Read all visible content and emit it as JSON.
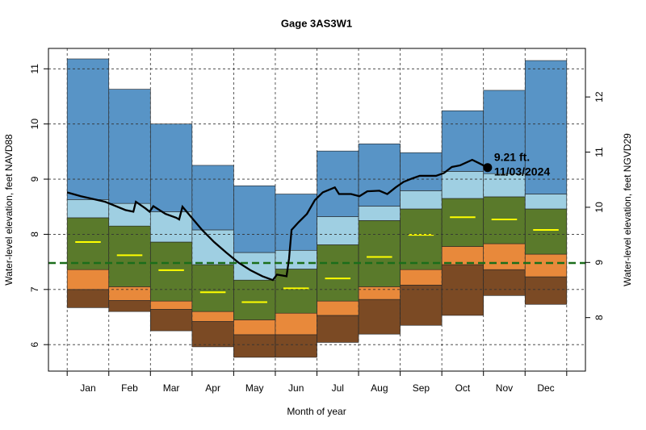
{
  "chart_data": {
    "type": "percentile-bands",
    "title": "Gage 3AS3W1",
    "x_label": "Month of year",
    "y_label": "Water-level elevation, feet NAVD88",
    "y2_label": "Water-level elevation, feet NGVD29",
    "categories": [
      "Jan",
      "Feb",
      "Mar",
      "Apr",
      "May",
      "Jun",
      "Jul",
      "Aug",
      "Sep",
      "Oct",
      "Nov",
      "Dec"
    ],
    "xlim": [
      -0.45,
      12.45
    ],
    "ylim": [
      5.52,
      11.37
    ],
    "yticks": [
      6,
      7,
      8,
      9,
      10,
      11
    ],
    "y2lim": [
      7.03,
      12.88
    ],
    "y2ticks": [
      8,
      9,
      10,
      11,
      12
    ],
    "grid": true,
    "floor": [
      6.67,
      6.6,
      6.25,
      5.96,
      5.77,
      5.77,
      6.04,
      6.19,
      6.35,
      6.53,
      6.89,
      6.73
    ],
    "series": [
      {
        "color": "#7b4a24",
        "values": [
          7.0,
          6.8,
          6.64,
          6.42,
          6.18,
          6.18,
          6.53,
          6.82,
          7.08,
          7.45,
          7.36,
          7.23
        ]
      },
      {
        "color": "#e8893b",
        "values": [
          7.36,
          7.05,
          6.79,
          6.6,
          6.45,
          6.57,
          6.79,
          7.05,
          7.36,
          7.78,
          7.83,
          7.64
        ]
      },
      {
        "color": "#5a7a2b",
        "values": [
          8.3,
          8.15,
          7.86,
          7.45,
          7.17,
          7.37,
          7.81,
          8.25,
          8.46,
          8.65,
          8.68,
          8.46
        ]
      },
      {
        "color": "#9fcfe2",
        "values": [
          8.63,
          8.56,
          8.41,
          8.08,
          7.67,
          7.71,
          8.32,
          8.51,
          8.79,
          9.14,
          9.1,
          8.73
        ]
      },
      {
        "color": "#5894c6",
        "values": [
          11.18,
          10.63,
          10.0,
          9.25,
          8.88,
          8.73,
          9.51,
          9.64,
          9.48,
          10.24,
          10.61,
          11.15
        ]
      }
    ],
    "median": {
      "color": "#ffff00",
      "values": [
        7.86,
        7.62,
        7.35,
        6.95,
        6.77,
        7.02,
        7.2,
        7.59,
        7.99,
        8.31,
        8.27,
        8.08
      ]
    },
    "reference_line": {
      "y": 7.48,
      "color": "#1b6e1b"
    },
    "line": {
      "color": "#000000",
      "x": [
        0.0,
        0.33,
        0.91,
        1.4,
        1.59,
        1.65,
        1.88,
        1.98,
        2.07,
        2.36,
        2.62,
        2.69,
        2.77,
        2.97,
        3.24,
        3.53,
        3.82,
        4.11,
        4.4,
        4.69,
        4.94,
        5.04,
        5.27,
        5.33,
        5.39,
        5.56,
        5.76,
        5.95,
        6.14,
        6.43,
        6.53,
        6.82,
        7.02,
        7.21,
        7.5,
        7.69,
        7.89,
        8.08,
        8.28,
        8.47,
        8.66,
        8.86,
        9.05,
        9.24,
        9.44,
        9.73,
        9.92,
        10.1
      ],
      "y": [
        8.76,
        8.69,
        8.59,
        8.44,
        8.41,
        8.59,
        8.47,
        8.41,
        8.51,
        8.37,
        8.3,
        8.27,
        8.5,
        8.32,
        8.08,
        7.86,
        7.67,
        7.49,
        7.35,
        7.24,
        7.17,
        7.27,
        7.24,
        7.56,
        8.08,
        8.22,
        8.37,
        8.62,
        8.76,
        8.85,
        8.73,
        8.73,
        8.69,
        8.78,
        8.79,
        8.73,
        8.85,
        8.95,
        9.01,
        9.06,
        9.06,
        9.06,
        9.11,
        9.22,
        9.25,
        9.35,
        9.28,
        9.21
      ]
    },
    "marker": {
      "x": 10.1,
      "y": 9.21,
      "label": "9.21 ft.",
      "date": "11/03/2024"
    }
  }
}
